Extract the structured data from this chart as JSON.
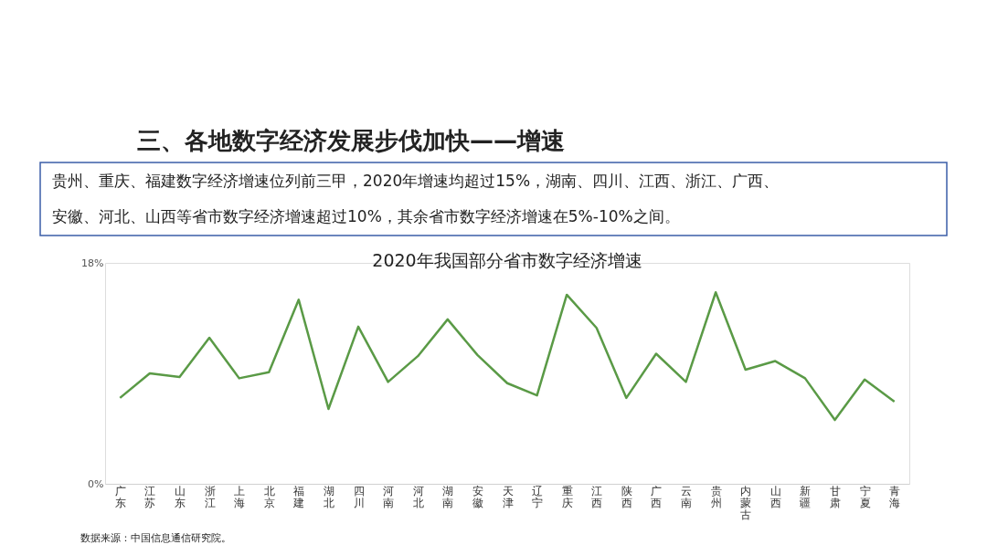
{
  "chart_data": {
    "type": "line",
    "title": "2020年我国部分省市数字经济增速",
    "annotations": [
      "三、各地数字经济发展步伐加快——增速",
      "贵州、重庆、福建数字经济增速位列前三甲，2020年增速均超过15%，湖南、四川、江西、浙江、广西、",
      "安徽、河北、山西等省市数字经济增速超过10%，其余省市数字经济增速在5%-10%之间。",
      "数据来源：中国信息通信研究院。"
    ],
    "categories": [
      "广东",
      "江苏",
      "山东",
      "浙江",
      "上海",
      "北京",
      "福建",
      "湖北",
      "四川",
      "河南",
      "河北",
      "湖南",
      "安徽",
      "天津",
      "辽宁",
      "重庆",
      "江西",
      "陕西",
      "广西",
      "云南",
      "贵州",
      "内蒙古",
      "山西",
      "新疆",
      "甘肃",
      "宁夏",
      "青海"
    ],
    "series": [
      {
        "color": "#5a9a46",
        "values": [
          7.0,
          9.0,
          8.7,
          11.9,
          8.6,
          9.1,
          15.0,
          6.1,
          12.8,
          8.3,
          10.4,
          13.4,
          10.5,
          8.2,
          7.2,
          15.4,
          12.7,
          7.0,
          10.6,
          8.3,
          15.6,
          9.3,
          10.0,
          8.6,
          5.2,
          8.5,
          6.7
        ]
      }
    ],
    "ylim": [
      0,
      18
    ],
    "yticks": [
      {
        "value": 0,
        "label": "0%"
      },
      {
        "value": 18,
        "label": "18%"
      }
    ],
    "grid": false,
    "line_style": "solid"
  }
}
